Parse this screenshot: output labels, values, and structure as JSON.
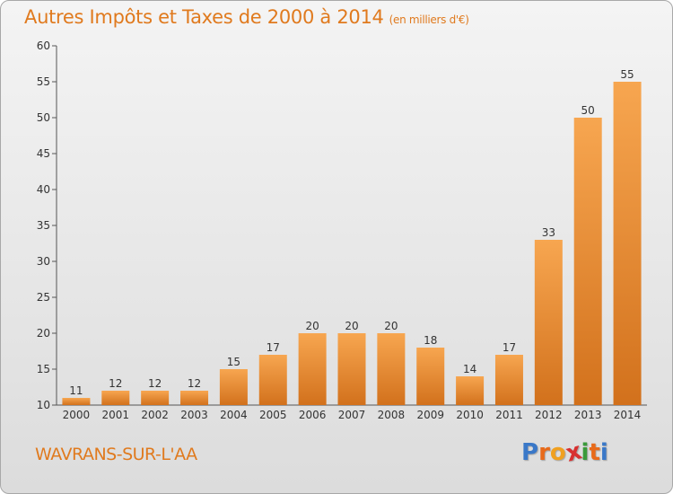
{
  "header": {
    "title": "Autres Impôts et Taxes de 2000 à 2014",
    "unit": "(en milliers d'€)"
  },
  "footer": {
    "commune": "WAVRANS-SUR-L'AA",
    "logo": {
      "text": "Proxiti",
      "letters": [
        "P",
        "r",
        "o",
        "x",
        "i",
        "t",
        "i"
      ],
      "colors": [
        "#3a78c8",
        "#e86a1a",
        "#f0a020",
        "#d83030",
        "#3a9a3a",
        "#e86a1a",
        "#3a78c8"
      ]
    }
  },
  "chart_data": {
    "type": "bar",
    "title": "Autres Impôts et Taxes de 2000 à 2014",
    "subtitle": "(en milliers d'€)",
    "categories": [
      "2000",
      "2001",
      "2002",
      "2003",
      "2004",
      "2005",
      "2006",
      "2007",
      "2008",
      "2009",
      "2010",
      "2011",
      "2012",
      "2013",
      "2014"
    ],
    "values": [
      11,
      12,
      12,
      12,
      15,
      17,
      20,
      20,
      20,
      18,
      14,
      17,
      33,
      50,
      55
    ],
    "ylim": [
      10,
      60
    ],
    "yticks": [
      10,
      15,
      20,
      25,
      30,
      35,
      40,
      45,
      50,
      55,
      60
    ],
    "grid": false,
    "legend": "none",
    "colors": {
      "bar_light": "#f7a650",
      "bar_dark": "#d2711c",
      "axis": "#555555",
      "text": "#e07a1e"
    }
  }
}
